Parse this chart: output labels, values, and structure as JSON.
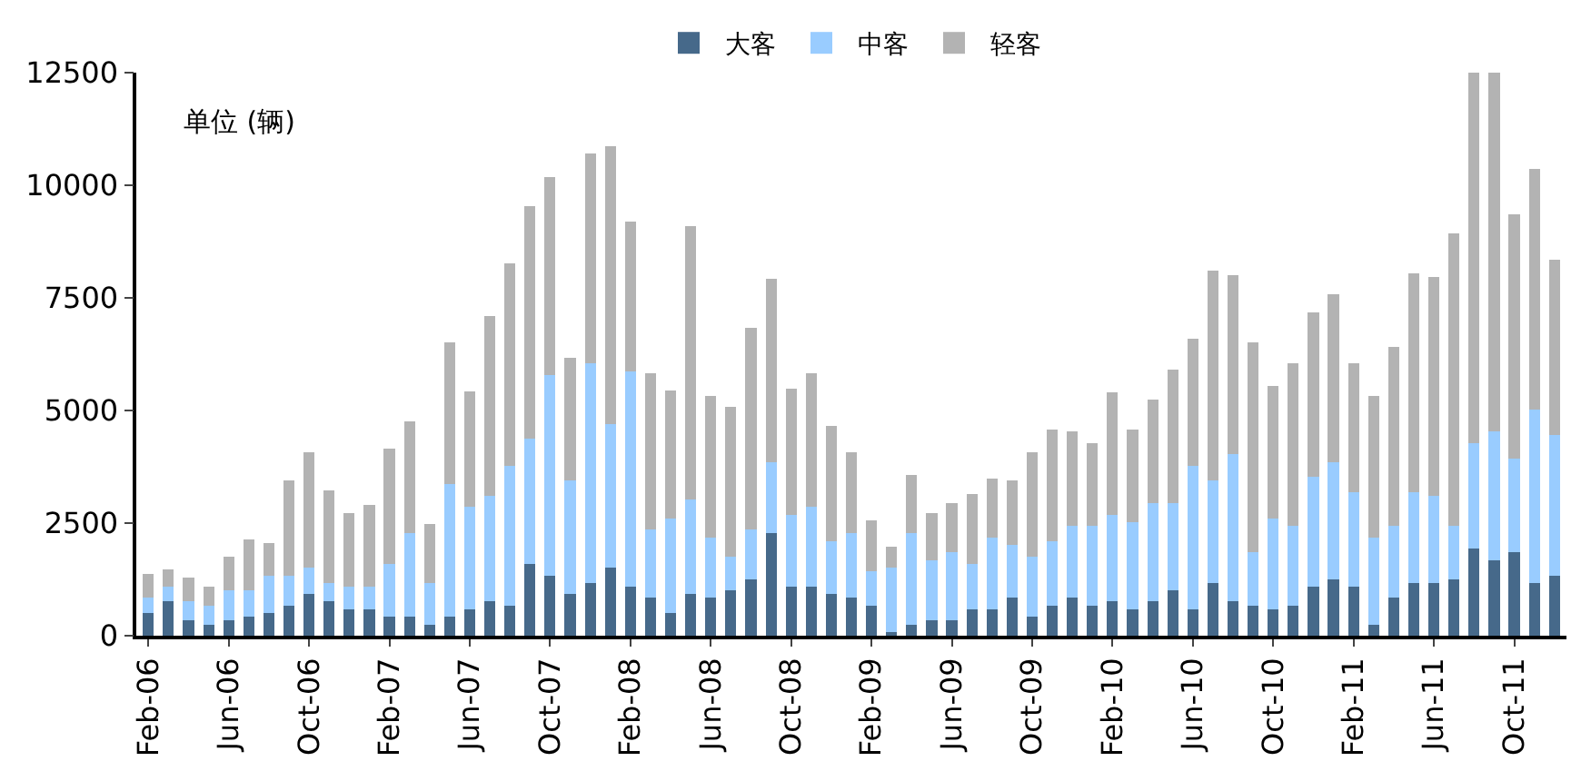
{
  "chart_data": {
    "type": "bar",
    "stacked": true,
    "categories": [
      "Feb-06",
      null,
      null,
      null,
      "Jun-06",
      null,
      null,
      null,
      "Oct-06",
      null,
      null,
      null,
      "Feb-07",
      null,
      null,
      null,
      "Jun-07",
      null,
      null,
      null,
      "Oct-07",
      null,
      null,
      null,
      "Feb-08",
      null,
      null,
      null,
      "Jun-08",
      null,
      null,
      null,
      "Oct-08",
      null,
      null,
      null,
      "Feb-09",
      null,
      null,
      null,
      "Jun-09",
      null,
      null,
      null,
      "Oct-09",
      null,
      null,
      null,
      "Feb-10",
      null,
      null,
      null,
      "Jun-10",
      null,
      null,
      null,
      "Oct-10",
      null,
      null,
      null,
      "Feb-11",
      null,
      null,
      null,
      "Jun-11",
      null,
      null,
      null,
      "Oct-11",
      null,
      null
    ],
    "series": [
      {
        "name": "大客",
        "color": "#46698a",
        "values": [
          500,
          760,
          340,
          250,
          340,
          420,
          500,
          670,
          920,
          760,
          590,
          590,
          420,
          420,
          250,
          420,
          590,
          760,
          670,
          1600,
          1340,
          920,
          1170,
          1510,
          1090,
          840,
          500,
          920,
          840,
          1010,
          1260,
          2270,
          1090,
          1090,
          920,
          840,
          670,
          80,
          250,
          340,
          340,
          590,
          590,
          840,
          420,
          670,
          840,
          670,
          760,
          590,
          760,
          1010,
          590,
          1170,
          760,
          670,
          590,
          670,
          1090,
          1260,
          1090,
          250,
          840,
          1170,
          1170,
          1260,
          1930,
          1680,
          1850,
          1170,
          1340
        ]
      },
      {
        "name": "中客",
        "color": "#99ccff",
        "values": [
          340,
          330,
          420,
          420,
          670,
          590,
          840,
          670,
          590,
          410,
          500,
          500,
          1180,
          1850,
          920,
          2940,
          2270,
          2350,
          3110,
          2770,
          4450,
          2520,
          4870,
          3190,
          4780,
          1510,
          2100,
          2100,
          1340,
          750,
          1090,
          1590,
          1590,
          1770,
          1180,
          1430,
          760,
          1430,
          2020,
          1340,
          1510,
          1010,
          1590,
          1170,
          1340,
          1430,
          1590,
          1760,
          1920,
          1930,
          2180,
          1930,
          3190,
          2270,
          3270,
          1180,
          2010,
          1760,
          2430,
          2600,
          2100,
          1930,
          1590,
          2020,
          1940,
          1170,
          2350,
          2850,
          2090,
          3860,
          3110
        ]
      },
      {
        "name": "轻客",
        "color": "#b3b3b3",
        "values": [
          530,
          380,
          540,
          420,
          750,
          1130,
          720,
          2100,
          2560,
          2060,
          1640,
          1810,
          2560,
          2480,
          1310,
          3150,
          2560,
          3990,
          4490,
          5160,
          4400,
          2730,
          4660,
          6170,
          3320,
          3480,
          2850,
          6080,
          3150,
          3320,
          4490,
          4070,
          2810,
          2970,
          2560,
          1800,
          1130,
          460,
          1300,
          1050,
          1090,
          1550,
          1300,
          1430,
          2310,
          2470,
          2100,
          1850,
          2730,
          2050,
          2300,
          2970,
          2810,
          4660,
          3980,
          4660,
          2940,
          3610,
          3650,
          3730,
          2850,
          3150,
          3990,
          4860,
          4860,
          6500,
          8220,
          7970,
          5410,
          5330,
          3900
        ]
      }
    ],
    "ylim": [
      0,
      12500
    ],
    "yticks": [
      0,
      2500,
      5000,
      7500,
      10000,
      12500
    ],
    "grid": false,
    "legend": "top",
    "annotations": [
      "单位 (辆)"
    ]
  }
}
